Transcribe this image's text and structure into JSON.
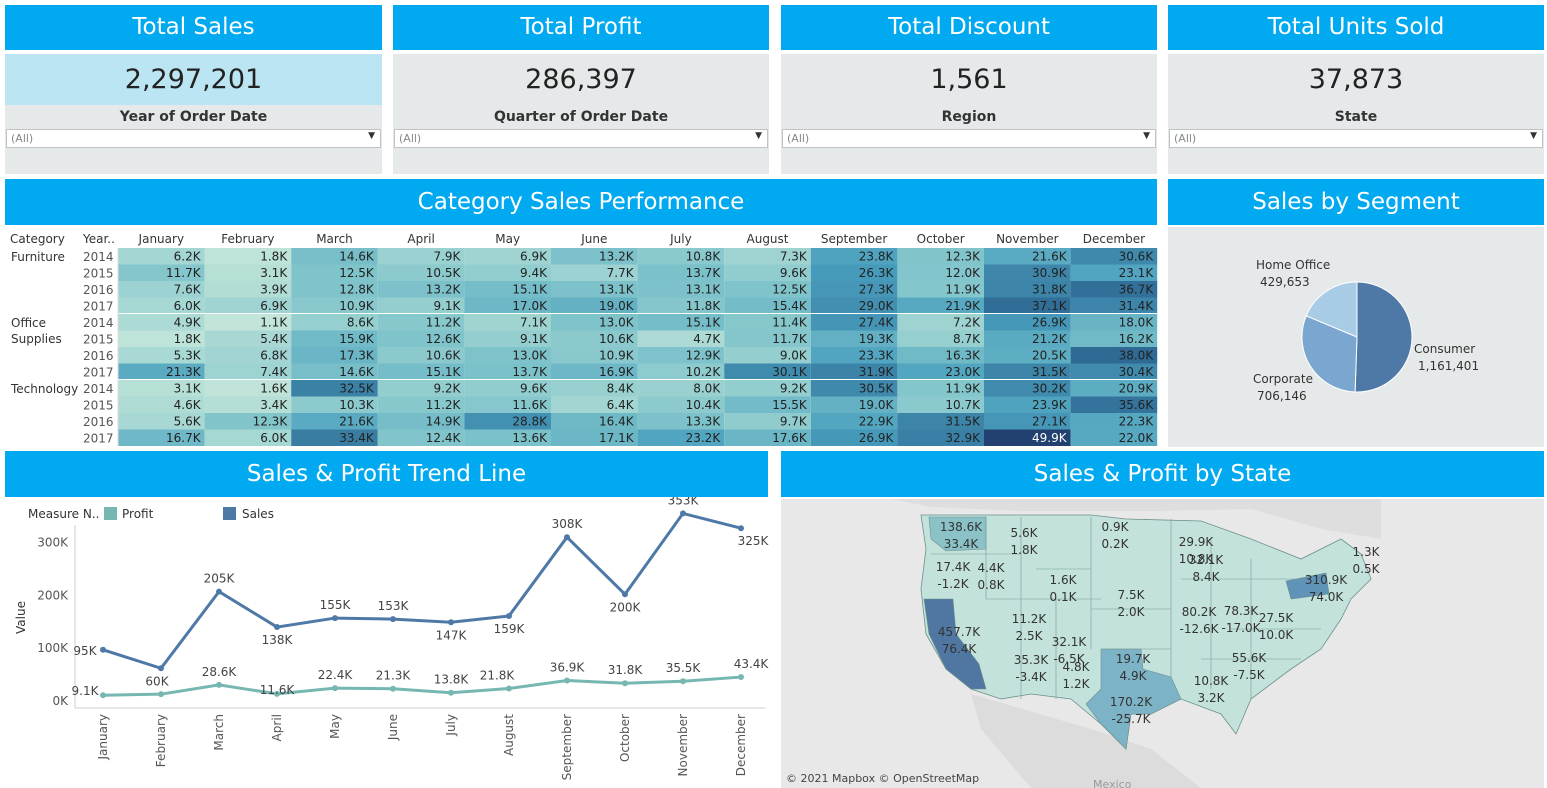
{
  "kpis": [
    {
      "title": "Total Sales",
      "value": "2,297,201",
      "filter_label": "Year of Order Date",
      "filter_value": "(All)"
    },
    {
      "title": "Total Profit",
      "value": "286,397",
      "filter_label": "Quarter of Order Date",
      "filter_value": "(All)"
    },
    {
      "title": "Total Discount",
      "value": "1,561",
      "filter_label": "Region",
      "filter_value": "(All)"
    },
    {
      "title": "Total Units Sold",
      "value": "37,873",
      "filter_label": "State",
      "filter_value": "(All)"
    }
  ],
  "colors": {
    "header": "#00a9f0",
    "panel": "#e6e9ea",
    "sales": "#4e79a7",
    "profit": "#76b7b2",
    "kpi_highlight": "#bce5f3"
  },
  "heatmap": {
    "title": "Category Sales Performance",
    "col_category": "Category",
    "col_year": "Year..",
    "months": [
      "January",
      "February",
      "March",
      "April",
      "May",
      "June",
      "July",
      "August",
      "September",
      "October",
      "November",
      "December"
    ],
    "groups": [
      {
        "name": "Furniture",
        "rows": [
          {
            "year": "2014",
            "values": [
              "6.2K",
              "1.8K",
              "14.6K",
              "7.9K",
              "6.9K",
              "13.2K",
              "10.8K",
              "7.3K",
              "23.8K",
              "12.3K",
              "21.6K",
              "30.6K"
            ]
          },
          {
            "year": "2015",
            "values": [
              "11.7K",
              "3.1K",
              "12.5K",
              "10.5K",
              "9.4K",
              "7.7K",
              "13.7K",
              "9.6K",
              "26.3K",
              "12.0K",
              "30.9K",
              "23.1K"
            ]
          },
          {
            "year": "2016",
            "values": [
              "7.6K",
              "3.9K",
              "12.8K",
              "13.2K",
              "15.1K",
              "13.1K",
              "13.1K",
              "12.5K",
              "27.3K",
              "11.9K",
              "31.8K",
              "36.7K"
            ]
          },
          {
            "year": "2017",
            "values": [
              "6.0K",
              "6.9K",
              "10.9K",
              "9.1K",
              "17.0K",
              "19.0K",
              "11.8K",
              "15.4K",
              "29.0K",
              "21.9K",
              "37.1K",
              "31.4K"
            ]
          }
        ]
      },
      {
        "name": "Office Supplies",
        "rows": [
          {
            "year": "2014",
            "values": [
              "4.9K",
              "1.1K",
              "8.6K",
              "11.2K",
              "7.1K",
              "13.0K",
              "15.1K",
              "11.4K",
              "27.4K",
              "7.2K",
              "26.9K",
              "18.0K"
            ]
          },
          {
            "year": "2015",
            "values": [
              "1.8K",
              "5.4K",
              "15.9K",
              "12.6K",
              "9.1K",
              "10.6K",
              "4.7K",
              "11.7K",
              "19.3K",
              "8.7K",
              "21.2K",
              "16.2K"
            ]
          },
          {
            "year": "2016",
            "values": [
              "5.3K",
              "6.8K",
              "17.3K",
              "10.6K",
              "13.0K",
              "10.9K",
              "12.9K",
              "9.0K",
              "23.3K",
              "16.3K",
              "20.5K",
              "38.0K"
            ]
          },
          {
            "year": "2017",
            "values": [
              "21.3K",
              "7.4K",
              "14.6K",
              "15.1K",
              "13.7K",
              "16.9K",
              "10.2K",
              "30.1K",
              "31.9K",
              "23.0K",
              "31.5K",
              "30.4K"
            ]
          }
        ]
      },
      {
        "name": "Technology",
        "rows": [
          {
            "year": "2014",
            "values": [
              "3.1K",
              "1.6K",
              "32.5K",
              "9.2K",
              "9.6K",
              "8.4K",
              "8.0K",
              "9.2K",
              "30.5K",
              "11.9K",
              "30.2K",
              "20.9K"
            ]
          },
          {
            "year": "2015",
            "values": [
              "4.6K",
              "3.4K",
              "10.3K",
              "11.2K",
              "11.6K",
              "6.4K",
              "10.4K",
              "15.5K",
              "19.0K",
              "10.7K",
              "23.9K",
              "35.6K"
            ]
          },
          {
            "year": "2016",
            "values": [
              "5.6K",
              "12.3K",
              "21.6K",
              "14.9K",
              "28.8K",
              "16.4K",
              "13.3K",
              "9.7K",
              "22.9K",
              "31.5K",
              "27.1K",
              "22.3K"
            ]
          },
          {
            "year": "2017",
            "values": [
              "16.7K",
              "6.0K",
              "33.4K",
              "12.4K",
              "13.6K",
              "17.1K",
              "23.2K",
              "17.6K",
              "26.9K",
              "32.9K",
              "49.9K",
              "22.0K"
            ]
          }
        ]
      }
    ]
  },
  "segment": {
    "title": "Sales by Segment",
    "slices": [
      {
        "name": "Consumer",
        "value": 1161401,
        "label": "1,161,401",
        "color": "#4e79a7"
      },
      {
        "name": "Corporate",
        "value": 706146,
        "label": "706,146",
        "color": "#7aa6cf"
      },
      {
        "name": "Home Office",
        "value": 429653,
        "label": "429,653",
        "color": "#a8cbe6"
      }
    ]
  },
  "trend": {
    "title": "Sales & Profit Trend Line",
    "legend_title": "Measure N..",
    "ylabel": "Value",
    "y_ticks": [
      "0K",
      "100K",
      "200K",
      "300K"
    ],
    "ylim": [
      0,
      350000
    ],
    "months": [
      "January",
      "February",
      "March",
      "April",
      "May",
      "June",
      "July",
      "August",
      "September",
      "October",
      "November",
      "December"
    ],
    "series": [
      {
        "name": "Sales",
        "color": "#4e79a7",
        "values": [
          95000,
          60000,
          205000,
          138000,
          155000,
          153000,
          147000,
          159000,
          308000,
          200000,
          353000,
          325000
        ],
        "labels": [
          "95K",
          "60K",
          "205K",
          "138K",
          "155K",
          "153K",
          "147K",
          "159K",
          "308K",
          "200K",
          "353K",
          "325K"
        ]
      },
      {
        "name": "Profit",
        "color": "#76b7b2",
        "values": [
          9100,
          11000,
          28600,
          11600,
          22400,
          21300,
          13800,
          21800,
          36900,
          31800,
          35500,
          43400
        ],
        "labels": [
          "9.1K",
          "",
          "28.6K",
          "11.6K",
          "22.4K",
          "21.3K",
          "13.8K",
          "21.8K",
          "36.9K",
          "31.8K",
          "35.5K",
          "43.4K"
        ]
      }
    ]
  },
  "map": {
    "title": "Sales & Profit by State",
    "attribution": "© 2021 Mapbox  © OpenStreetMap",
    "country_label": "Mexico",
    "states": [
      {
        "sales": "138.6K",
        "profit": "33.4K"
      },
      {
        "sales": "17.4K",
        "profit": "-1.2K"
      },
      {
        "sales": "457.7K",
        "profit": "76.4K"
      },
      {
        "sales": "5.6K",
        "profit": "1.8K"
      },
      {
        "sales": "4.4K",
        "profit": "0.8K"
      },
      {
        "sales": "1.6K",
        "profit": "0.1K"
      },
      {
        "sales": "0.9K",
        "profit": "0.2K"
      },
      {
        "sales": "29.9K",
        "profit": "10.8K"
      },
      {
        "sales": "32.1K",
        "profit": "8.4K"
      },
      {
        "sales": "11.2K",
        "profit": "2.5K"
      },
      {
        "sales": "32.1K",
        "profit": "-6.5K"
      },
      {
        "sales": "7.5K",
        "profit": "2.0K"
      },
      {
        "sales": "35.3K",
        "profit": "-3.4K"
      },
      {
        "sales": "4.8K",
        "profit": "1.2K"
      },
      {
        "sales": "19.7K",
        "profit": "4.9K"
      },
      {
        "sales": "170.2K",
        "profit": "-25.7K"
      },
      {
        "sales": "80.2K",
        "profit": "-12.6K"
      },
      {
        "sales": "78.3K",
        "profit": "-17.0K"
      },
      {
        "sales": "10.8K",
        "profit": "3.2K"
      },
      {
        "sales": "55.6K",
        "profit": "-7.5K"
      },
      {
        "sales": "27.5K",
        "profit": "10.0K"
      },
      {
        "sales": "310.9K",
        "profit": "74.0K"
      },
      {
        "sales": "1.3K",
        "profit": "0.5K"
      }
    ]
  }
}
